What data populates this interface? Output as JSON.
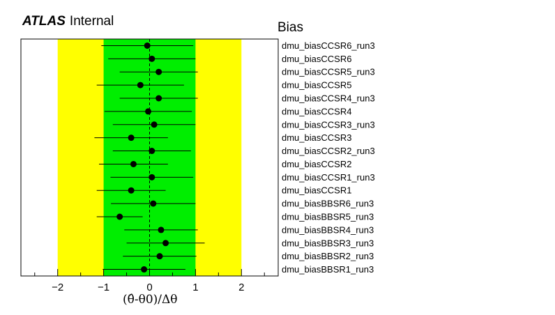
{
  "header": {
    "brand": "ATLAS",
    "status": "Internal",
    "panel_title": "Bias"
  },
  "chart_data": {
    "type": "scatter",
    "title": "Bias",
    "xlabel": "(θ̂-θ0)/Δθ",
    "xlim": [
      -2.8,
      2.8
    ],
    "x_ticks": [
      -2,
      -1,
      0,
      1,
      2
    ],
    "bands": [
      {
        "range": [
          -2,
          2
        ],
        "color": "#ffff00"
      },
      {
        "range": [
          -1,
          1
        ],
        "color": "#00ee00"
      }
    ],
    "reference_line": 0,
    "grid": false,
    "point_color": "#000000",
    "series": [
      {
        "label": "dmu_biasCCSR6_run3",
        "value": -0.05,
        "err_low": 1.0,
        "err_high": 1.0
      },
      {
        "label": "dmu_biasCCSR6",
        "value": 0.05,
        "err_low": 0.95,
        "err_high": 0.95
      },
      {
        "label": "dmu_biasCCSR5_run3",
        "value": 0.2,
        "err_low": 0.85,
        "err_high": 0.85
      },
      {
        "label": "dmu_biasCCSR5",
        "value": -0.2,
        "err_low": 0.95,
        "err_high": 0.95
      },
      {
        "label": "dmu_biasCCSR4_run3",
        "value": 0.2,
        "err_low": 0.85,
        "err_high": 0.85
      },
      {
        "label": "dmu_biasCCSR4",
        "value": -0.03,
        "err_low": 0.95,
        "err_high": 0.95
      },
      {
        "label": "dmu_biasCCSR3_run3",
        "value": 0.1,
        "err_low": 0.9,
        "err_high": 0.9
      },
      {
        "label": "dmu_biasCCSR3",
        "value": -0.4,
        "err_low": 0.8,
        "err_high": 0.8
      },
      {
        "label": "dmu_biasCCSR2_run3",
        "value": 0.05,
        "err_low": 0.85,
        "err_high": 0.85
      },
      {
        "label": "dmu_biasCCSR2",
        "value": -0.35,
        "err_low": 0.75,
        "err_high": 0.75
      },
      {
        "label": "dmu_biasCCSR1_run3",
        "value": 0.05,
        "err_low": 0.9,
        "err_high": 0.9
      },
      {
        "label": "dmu_biasCCSR1",
        "value": -0.4,
        "err_low": 0.75,
        "err_high": 0.75
      },
      {
        "label": "dmu_biasBBSR6_run3",
        "value": 0.08,
        "err_low": 0.92,
        "err_high": 0.92
      },
      {
        "label": "dmu_biasBBSR5_run3",
        "value": -0.65,
        "err_low": 0.5,
        "err_high": 0.5
      },
      {
        "label": "dmu_biasBBSR4_run3",
        "value": 0.25,
        "err_low": 0.8,
        "err_high": 0.8
      },
      {
        "label": "dmu_biasBBSR3_run3",
        "value": 0.35,
        "err_low": 0.85,
        "err_high": 0.85
      },
      {
        "label": "dmu_biasBBSR2_run3",
        "value": 0.22,
        "err_low": 0.8,
        "err_high": 0.8
      },
      {
        "label": "dmu_biasBBSR1_run3",
        "value": -0.12,
        "err_low": 0.9,
        "err_high": 0.9
      }
    ]
  }
}
